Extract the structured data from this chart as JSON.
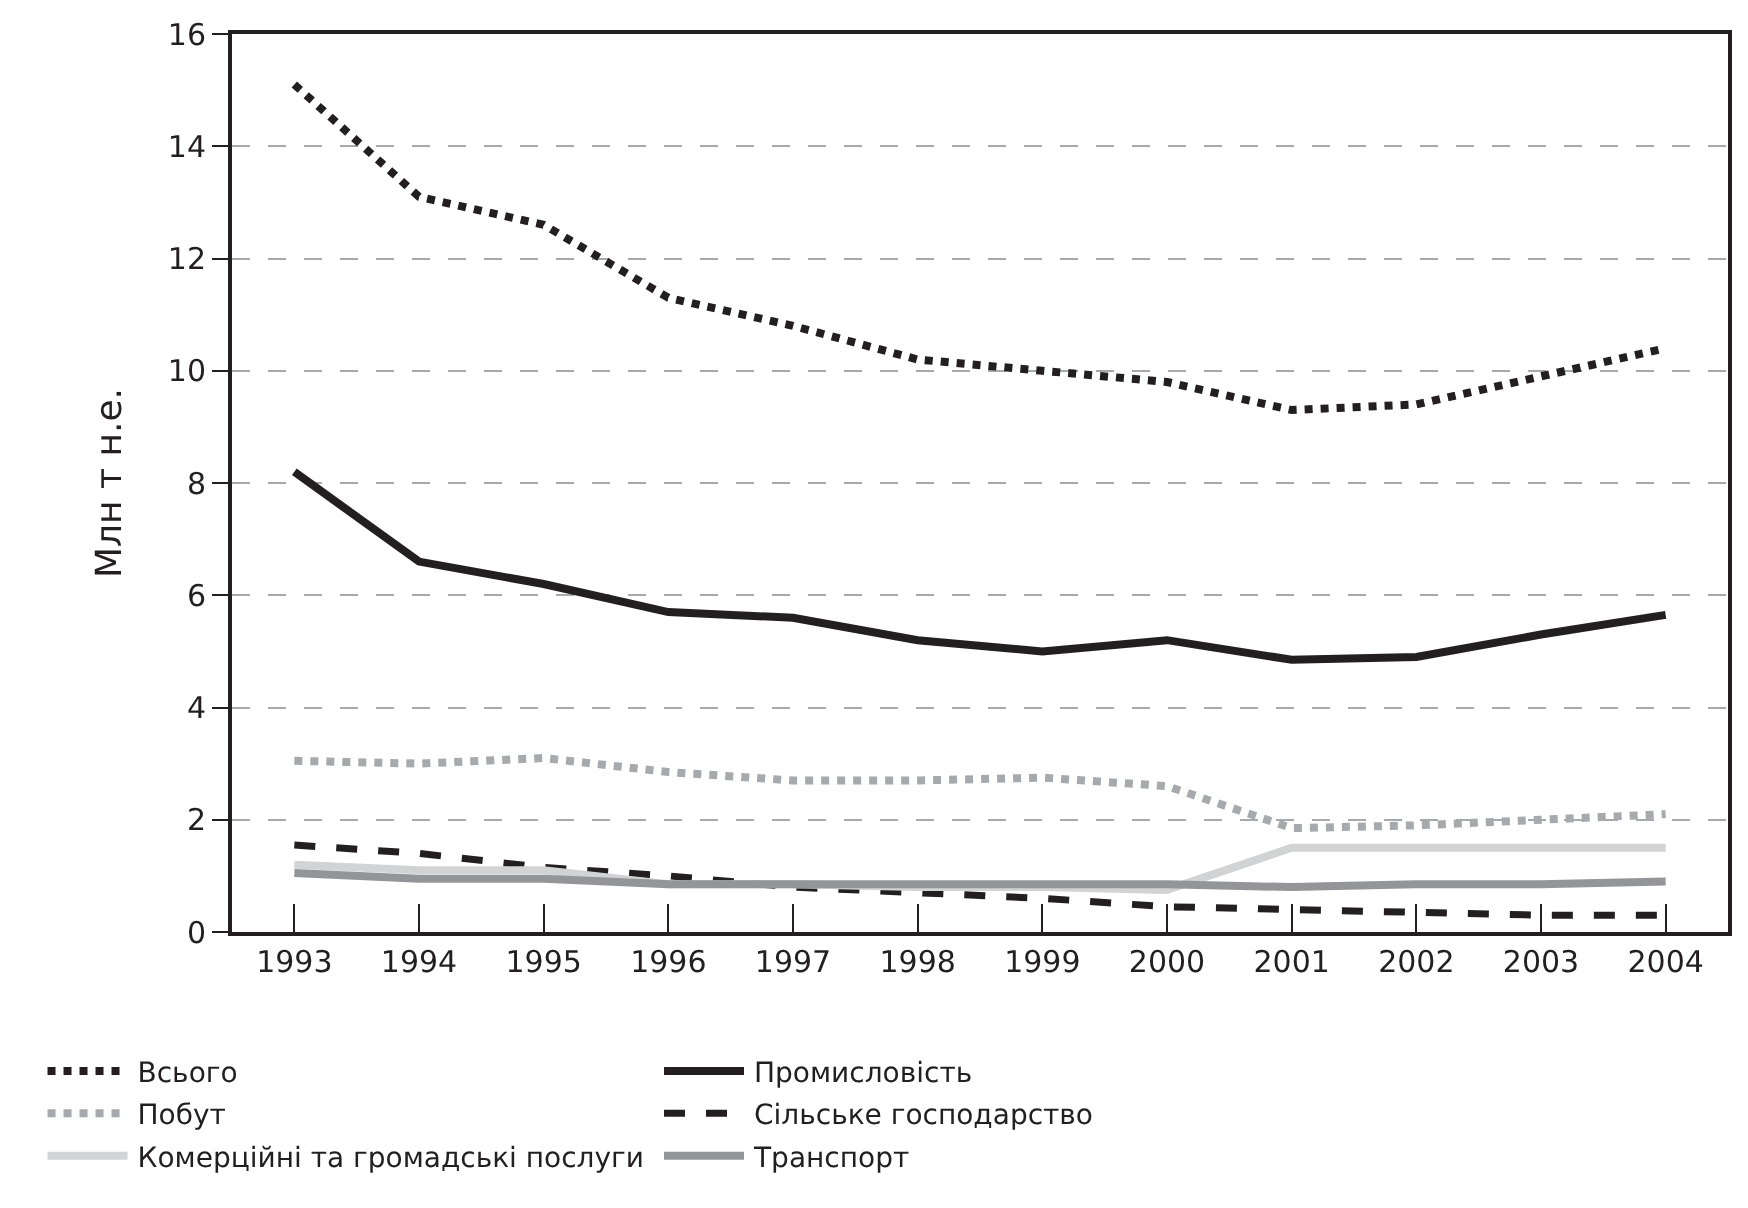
{
  "chart_data": {
    "type": "line",
    "ylabel": "Млн т н.е.",
    "categories": [
      "1993",
      "1994",
      "1995",
      "1996",
      "1997",
      "1998",
      "1999",
      "2000",
      "2001",
      "2002",
      "2003",
      "2004"
    ],
    "series": [
      {
        "name": "Всього",
        "color": "#231f20",
        "line_style": "dotted",
        "values": [
          15.1,
          13.1,
          12.6,
          11.3,
          10.8,
          10.2,
          10.0,
          9.8,
          9.3,
          9.4,
          9.9,
          10.4
        ]
      },
      {
        "name": "Промисловість",
        "color": "#231f20",
        "line_style": "solid",
        "values": [
          8.2,
          6.6,
          6.2,
          5.7,
          5.6,
          5.2,
          5.0,
          5.2,
          4.85,
          4.9,
          5.3,
          5.65
        ]
      },
      {
        "name": "Побут",
        "color": "#a7a9ac",
        "line_style": "dotted",
        "values": [
          3.05,
          3.0,
          3.1,
          2.85,
          2.7,
          2.7,
          2.75,
          2.6,
          1.85,
          1.9,
          2.0,
          2.1
        ]
      },
      {
        "name": "Сільське господарство",
        "color": "#231f20",
        "line_style": "dashed",
        "values": [
          1.55,
          1.4,
          1.15,
          1.0,
          0.8,
          0.7,
          0.6,
          0.45,
          0.4,
          0.35,
          0.3,
          0.3
        ]
      },
      {
        "name": "Комерційні та громадські послуги",
        "color": "#d1d3d4",
        "line_style": "solid",
        "values": [
          1.2,
          1.1,
          1.1,
          0.85,
          0.85,
          0.8,
          0.8,
          0.75,
          1.5,
          1.5,
          1.5,
          1.5
        ]
      },
      {
        "name": "Транспорт",
        "color": "#939598",
        "line_style": "solid",
        "values": [
          1.05,
          0.95,
          0.95,
          0.85,
          0.85,
          0.85,
          0.85,
          0.85,
          0.8,
          0.85,
          0.85,
          0.9
        ]
      }
    ],
    "ylim": [
      0,
      16
    ],
    "yticks": [
      0,
      2,
      4,
      6,
      8,
      10,
      12,
      14,
      16
    ],
    "grid": "y",
    "legend": "bottom",
    "marker": "none"
  }
}
